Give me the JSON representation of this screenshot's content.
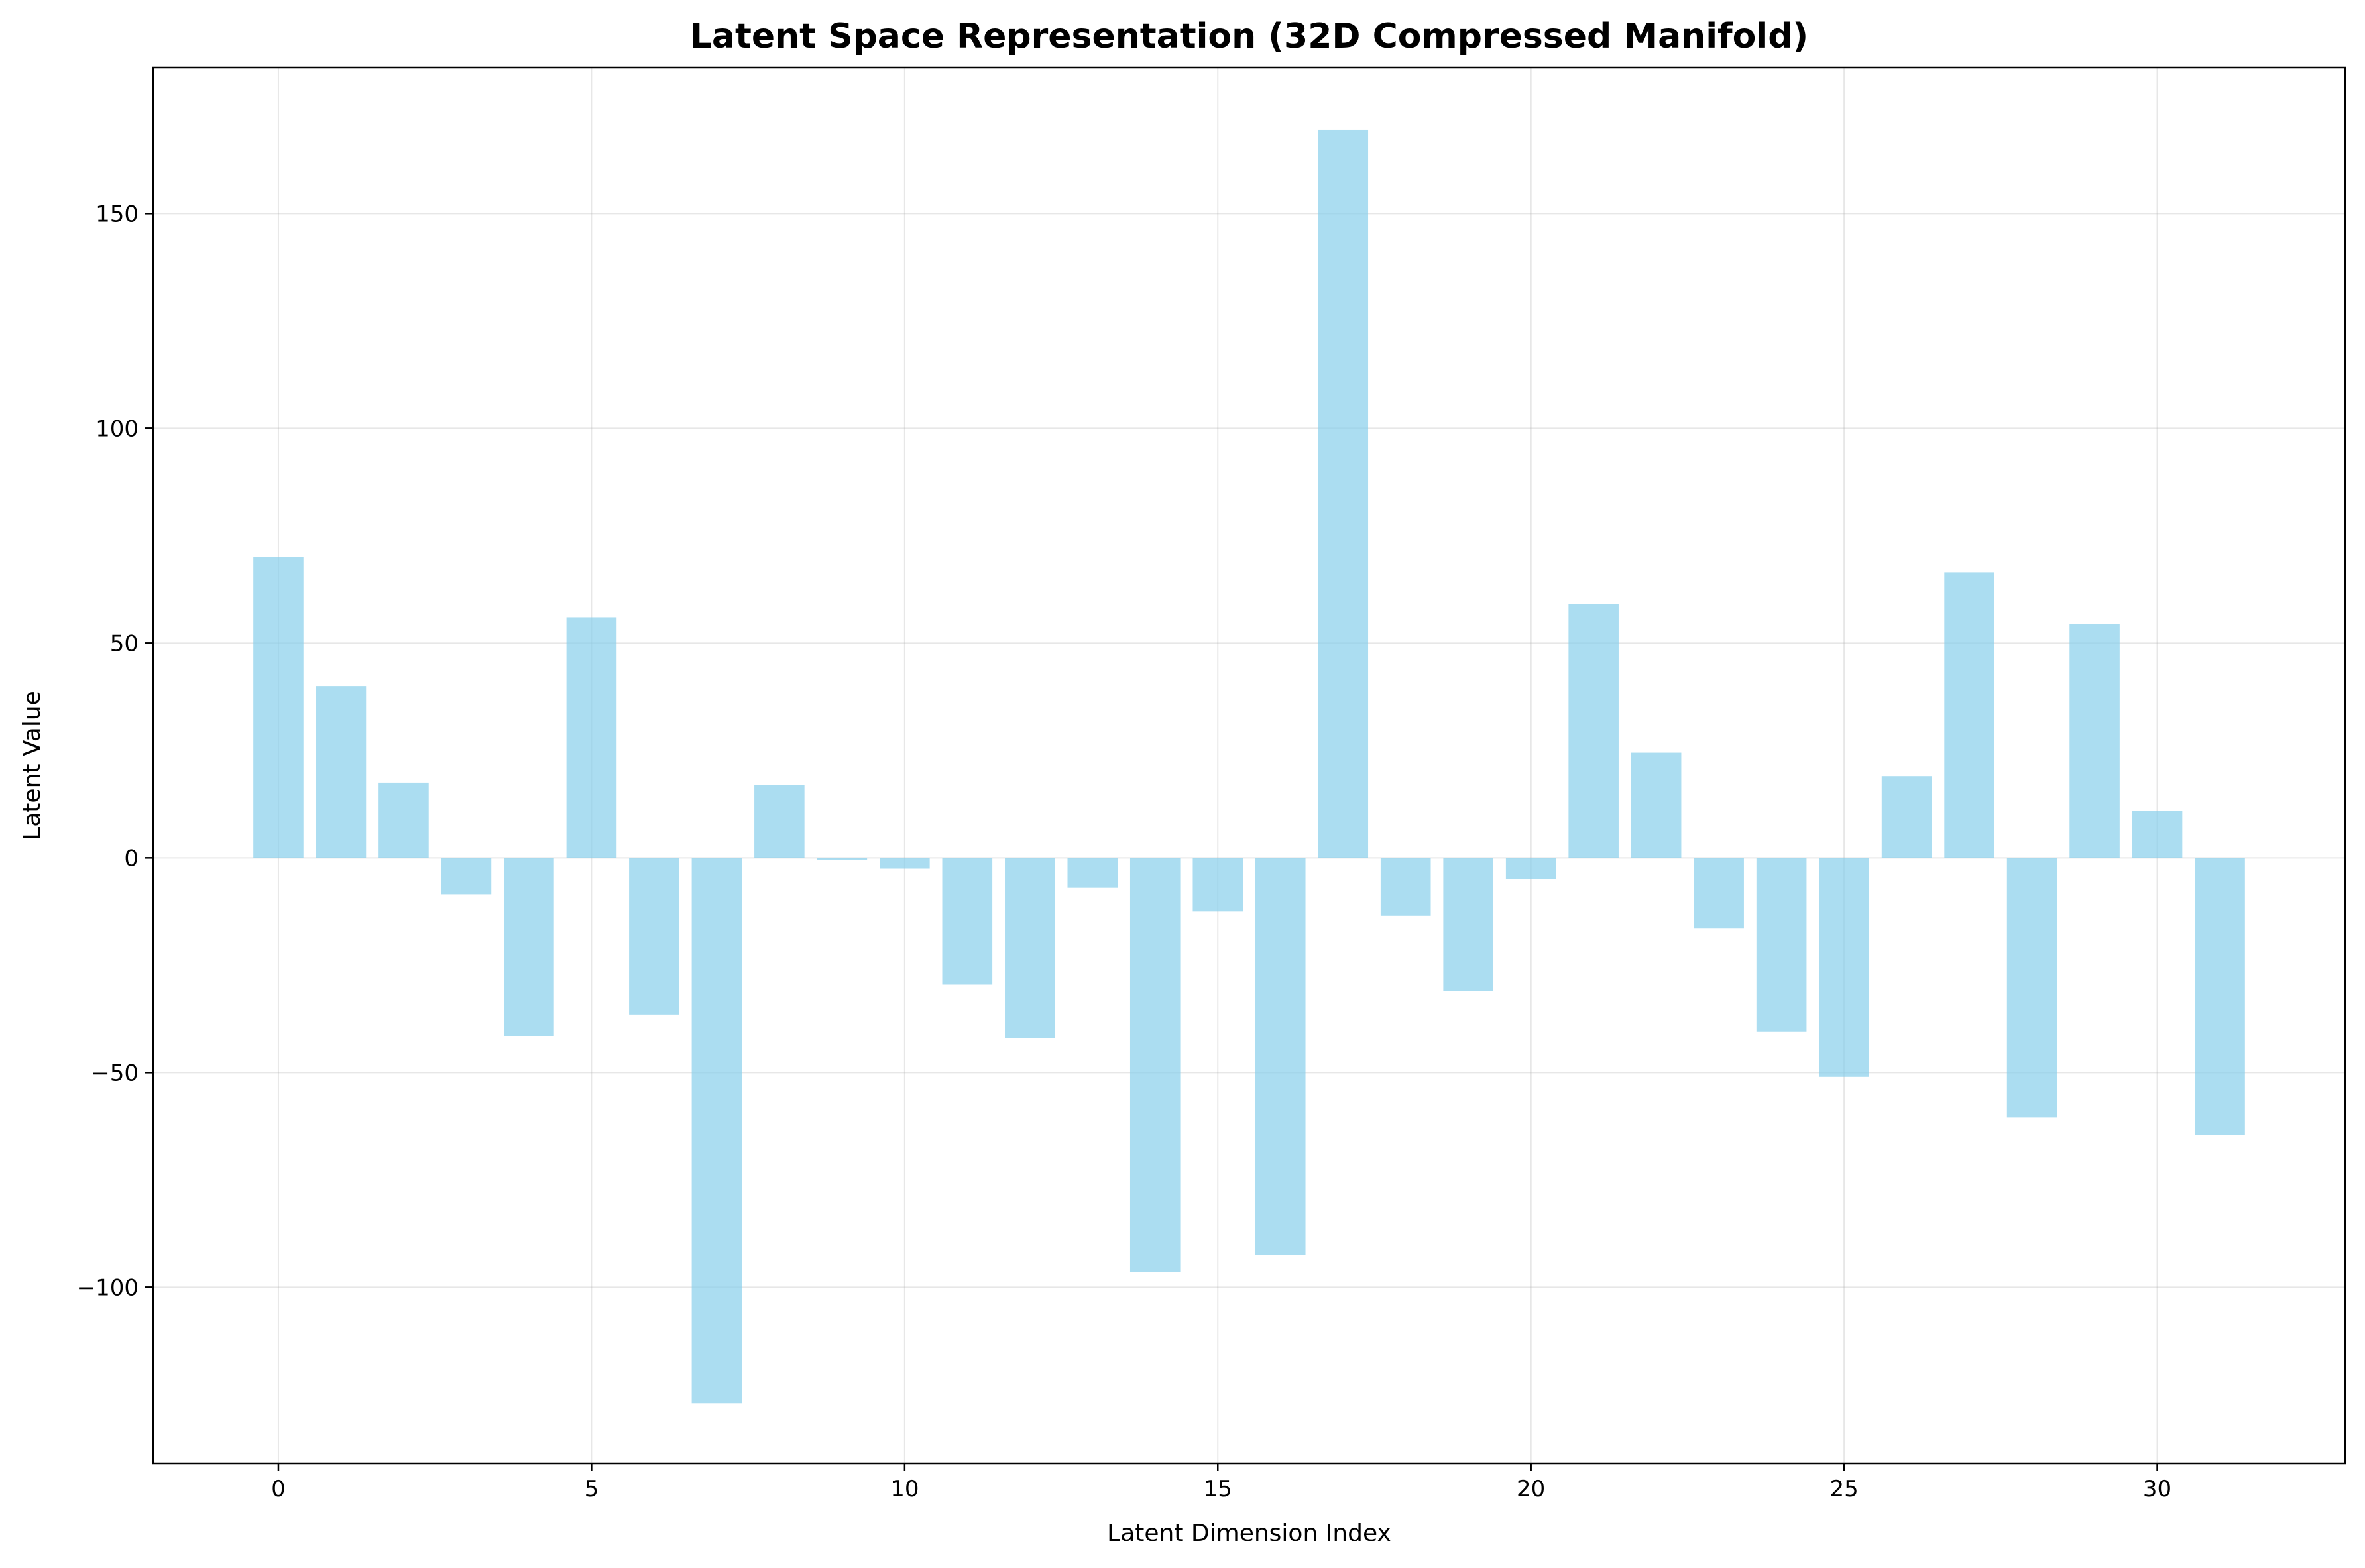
{
  "chart_data": {
    "type": "bar",
    "title": "Latent Space Representation (32D Compressed Manifold)",
    "xlabel": "Latent Dimension Index",
    "ylabel": "Latent Value",
    "x": [
      0,
      1,
      2,
      3,
      4,
      5,
      6,
      7,
      8,
      9,
      10,
      11,
      12,
      13,
      14,
      15,
      16,
      17,
      18,
      19,
      20,
      21,
      22,
      23,
      24,
      25,
      26,
      27,
      28,
      29,
      30,
      31
    ],
    "values": [
      70,
      40,
      17.5,
      -8.5,
      -41.5,
      56,
      -36.5,
      -127,
      17,
      -0.5,
      -2.5,
      -29.5,
      -42,
      -7,
      -96.5,
      -12.5,
      -92.5,
      169.5,
      -13.5,
      -31,
      -5,
      59,
      24.5,
      -16.5,
      -40.5,
      -51,
      19,
      66.5,
      -60.5,
      54.5,
      11,
      -64.5
    ],
    "xlim": [
      -2,
      33
    ],
    "ylim": [
      -141,
      184
    ],
    "xticks": [
      0,
      5,
      10,
      15,
      20,
      25,
      30
    ],
    "yticks": [
      -100,
      -50,
      0,
      50,
      100,
      150
    ],
    "ytick_labels": [
      "−100",
      "−50",
      "0",
      "50",
      "100",
      "150"
    ],
    "bar_color": "#87CEEB",
    "bar_opacity": 0.7,
    "grid": true,
    "legend": "none"
  }
}
